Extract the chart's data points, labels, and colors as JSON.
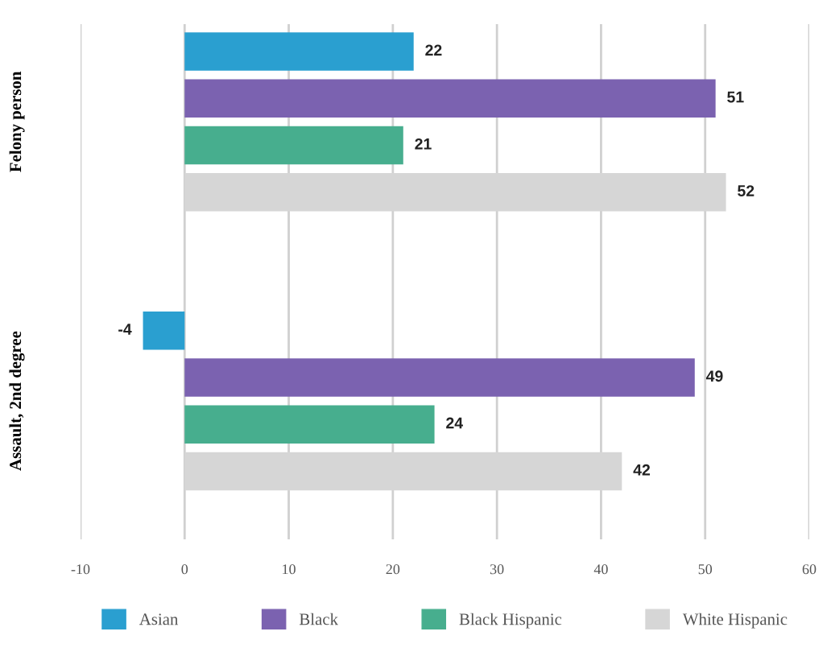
{
  "chart_data": {
    "type": "bar",
    "orientation": "horizontal",
    "categories": [
      "Felony person",
      "Assault, 2nd degree"
    ],
    "series": [
      {
        "name": "Asian",
        "color": "#2a9fd0",
        "values": [
          22,
          -4
        ]
      },
      {
        "name": "Black",
        "color": "#7b62b0",
        "values": [
          51,
          49
        ]
      },
      {
        "name": "Black Hispanic",
        "color": "#47ae8e",
        "values": [
          21,
          24
        ]
      },
      {
        "name": "White Hispanic",
        "color": "#d6d6d6",
        "values": [
          52,
          42
        ]
      }
    ],
    "xlim": [
      -10,
      60
    ],
    "xticks": [
      -10,
      0,
      10,
      20,
      30,
      40,
      50,
      60
    ],
    "grid": "x",
    "legend": "bottom",
    "data_labels": true
  }
}
